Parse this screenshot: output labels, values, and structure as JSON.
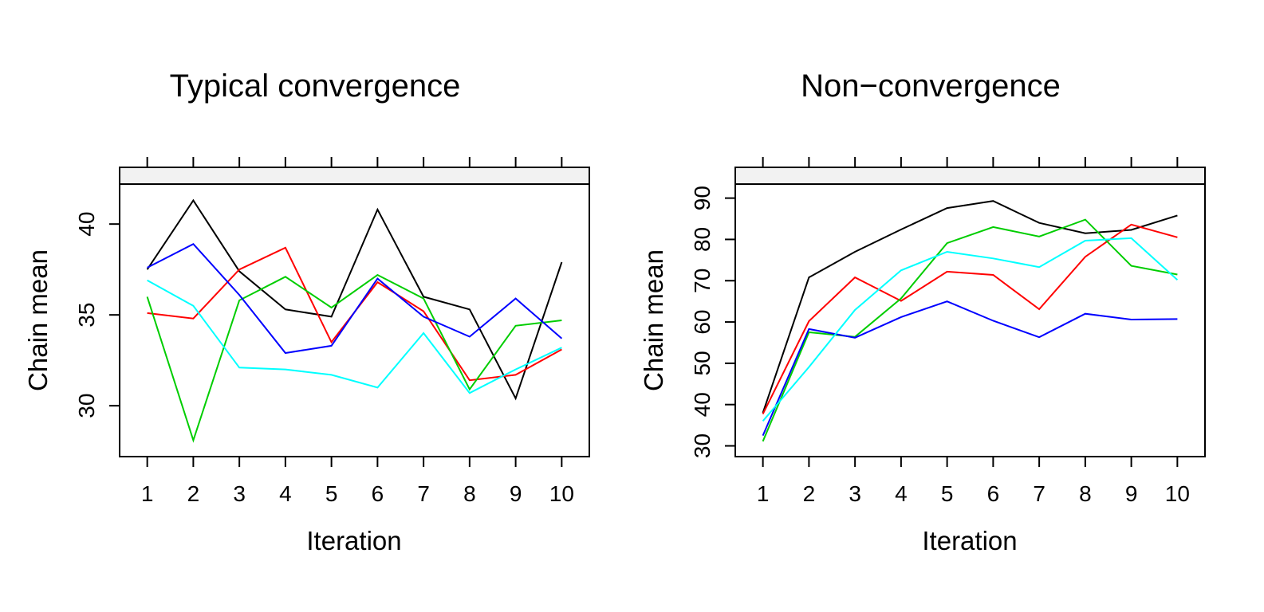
{
  "chart_data": [
    {
      "type": "line",
      "title": "Typical convergence",
      "xlabel": "Iteration",
      "ylabel": "Chain mean",
      "x": [
        1,
        2,
        3,
        4,
        5,
        6,
        7,
        8,
        9,
        10
      ],
      "xlim": [
        0.4,
        10.6
      ],
      "ylim": [
        27.2,
        42.2
      ],
      "yticks": [
        30,
        35,
        40
      ],
      "grid": false,
      "legend": "none",
      "series": [
        {
          "color": "#000000",
          "values": [
            37.5,
            41.3,
            37.4,
            35.3,
            34.9,
            40.8,
            36.0,
            35.3,
            30.4,
            37.9
          ]
        },
        {
          "color": "#ff0000",
          "values": [
            35.1,
            34.8,
            37.5,
            38.7,
            33.5,
            36.8,
            35.2,
            31.4,
            31.7,
            33.1
          ]
        },
        {
          "color": "#00cd00",
          "values": [
            36.0,
            28.1,
            35.8,
            37.1,
            35.4,
            37.2,
            35.9,
            30.9,
            34.4,
            34.7
          ]
        },
        {
          "color": "#0000ff",
          "values": [
            37.6,
            38.9,
            36.1,
            32.9,
            33.3,
            37.0,
            34.9,
            33.8,
            35.9,
            33.7
          ]
        },
        {
          "color": "#00ffff",
          "values": [
            36.9,
            35.5,
            32.1,
            32.0,
            31.7,
            31.0,
            34.0,
            30.7,
            32.0,
            33.2
          ]
        }
      ]
    },
    {
      "type": "line",
      "title": "Non−convergence",
      "xlabel": "Iteration",
      "ylabel": "Chain mean",
      "x": [
        1,
        2,
        3,
        4,
        5,
        6,
        7,
        8,
        9,
        10
      ],
      "xlim": [
        0.4,
        10.6
      ],
      "ylim": [
        27.4,
        93.4
      ],
      "yticks": [
        30,
        40,
        50,
        60,
        70,
        80,
        90
      ],
      "grid": false,
      "legend": "none",
      "series": [
        {
          "color": "#000000",
          "values": [
            38.0,
            70.8,
            77.0,
            82.4,
            87.6,
            89.3,
            84.0,
            81.5,
            82.3,
            85.8
          ]
        },
        {
          "color": "#ff0000",
          "values": [
            37.7,
            60.2,
            70.8,
            65.1,
            72.2,
            71.4,
            63.1,
            75.8,
            83.6,
            80.5
          ]
        },
        {
          "color": "#00cd00",
          "values": [
            31.1,
            57.5,
            56.4,
            65.7,
            79.1,
            83.0,
            80.7,
            84.8,
            73.6,
            71.5
          ]
        },
        {
          "color": "#0000ff",
          "values": [
            32.5,
            58.3,
            56.2,
            61.2,
            65.0,
            60.3,
            56.3,
            62.0,
            60.6,
            60.7
          ]
        },
        {
          "color": "#00ffff",
          "values": [
            36.0,
            49.1,
            62.9,
            72.5,
            77.0,
            75.4,
            73.3,
            79.7,
            80.3,
            70.2
          ]
        }
      ]
    }
  ]
}
